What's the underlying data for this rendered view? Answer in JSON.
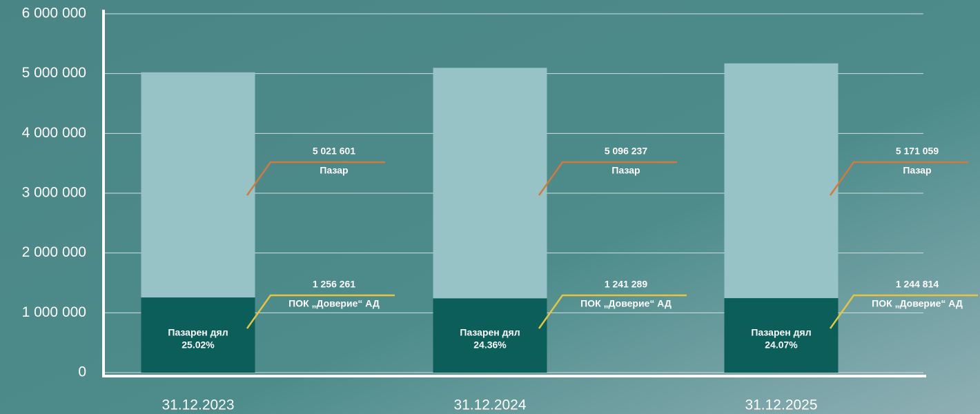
{
  "chart_data": {
    "type": "bar",
    "categories": [
      "31.12.2023",
      "31.12.2024",
      "31.12.2025"
    ],
    "series": [
      {
        "name": "Пазар",
        "color": "#97c3c6",
        "values": [
          5021601,
          5096237,
          5171059
        ],
        "value_labels": [
          "5 021 601",
          "5 096 237",
          "5 171 059"
        ]
      },
      {
        "name": "ПОК „Доверие“ АД",
        "color": "#0b5e5a",
        "values": [
          1256261,
          1241289,
          1244814
        ],
        "value_labels": [
          "1 256 261",
          "1 241 289",
          "1 244 814"
        ]
      }
    ],
    "share": {
      "label": "Пазарен дял",
      "values": [
        25.02,
        24.36,
        24.07
      ],
      "value_labels": [
        "25.02%",
        "24.36%",
        "24.07%"
      ]
    },
    "ylim": [
      0,
      6000000
    ],
    "yticks": [
      {
        "value": 0,
        "label": "0"
      },
      {
        "value": 1000000,
        "label": "1 000 000"
      },
      {
        "value": 2000000,
        "label": "2 000 000"
      },
      {
        "value": 3000000,
        "label": "3 000 000"
      },
      {
        "value": 4000000,
        "label": "4 000 000"
      },
      {
        "value": 5000000,
        "label": "5 000 000"
      },
      {
        "value": 6000000,
        "label": "6 000 000"
      }
    ],
    "grid": true
  }
}
